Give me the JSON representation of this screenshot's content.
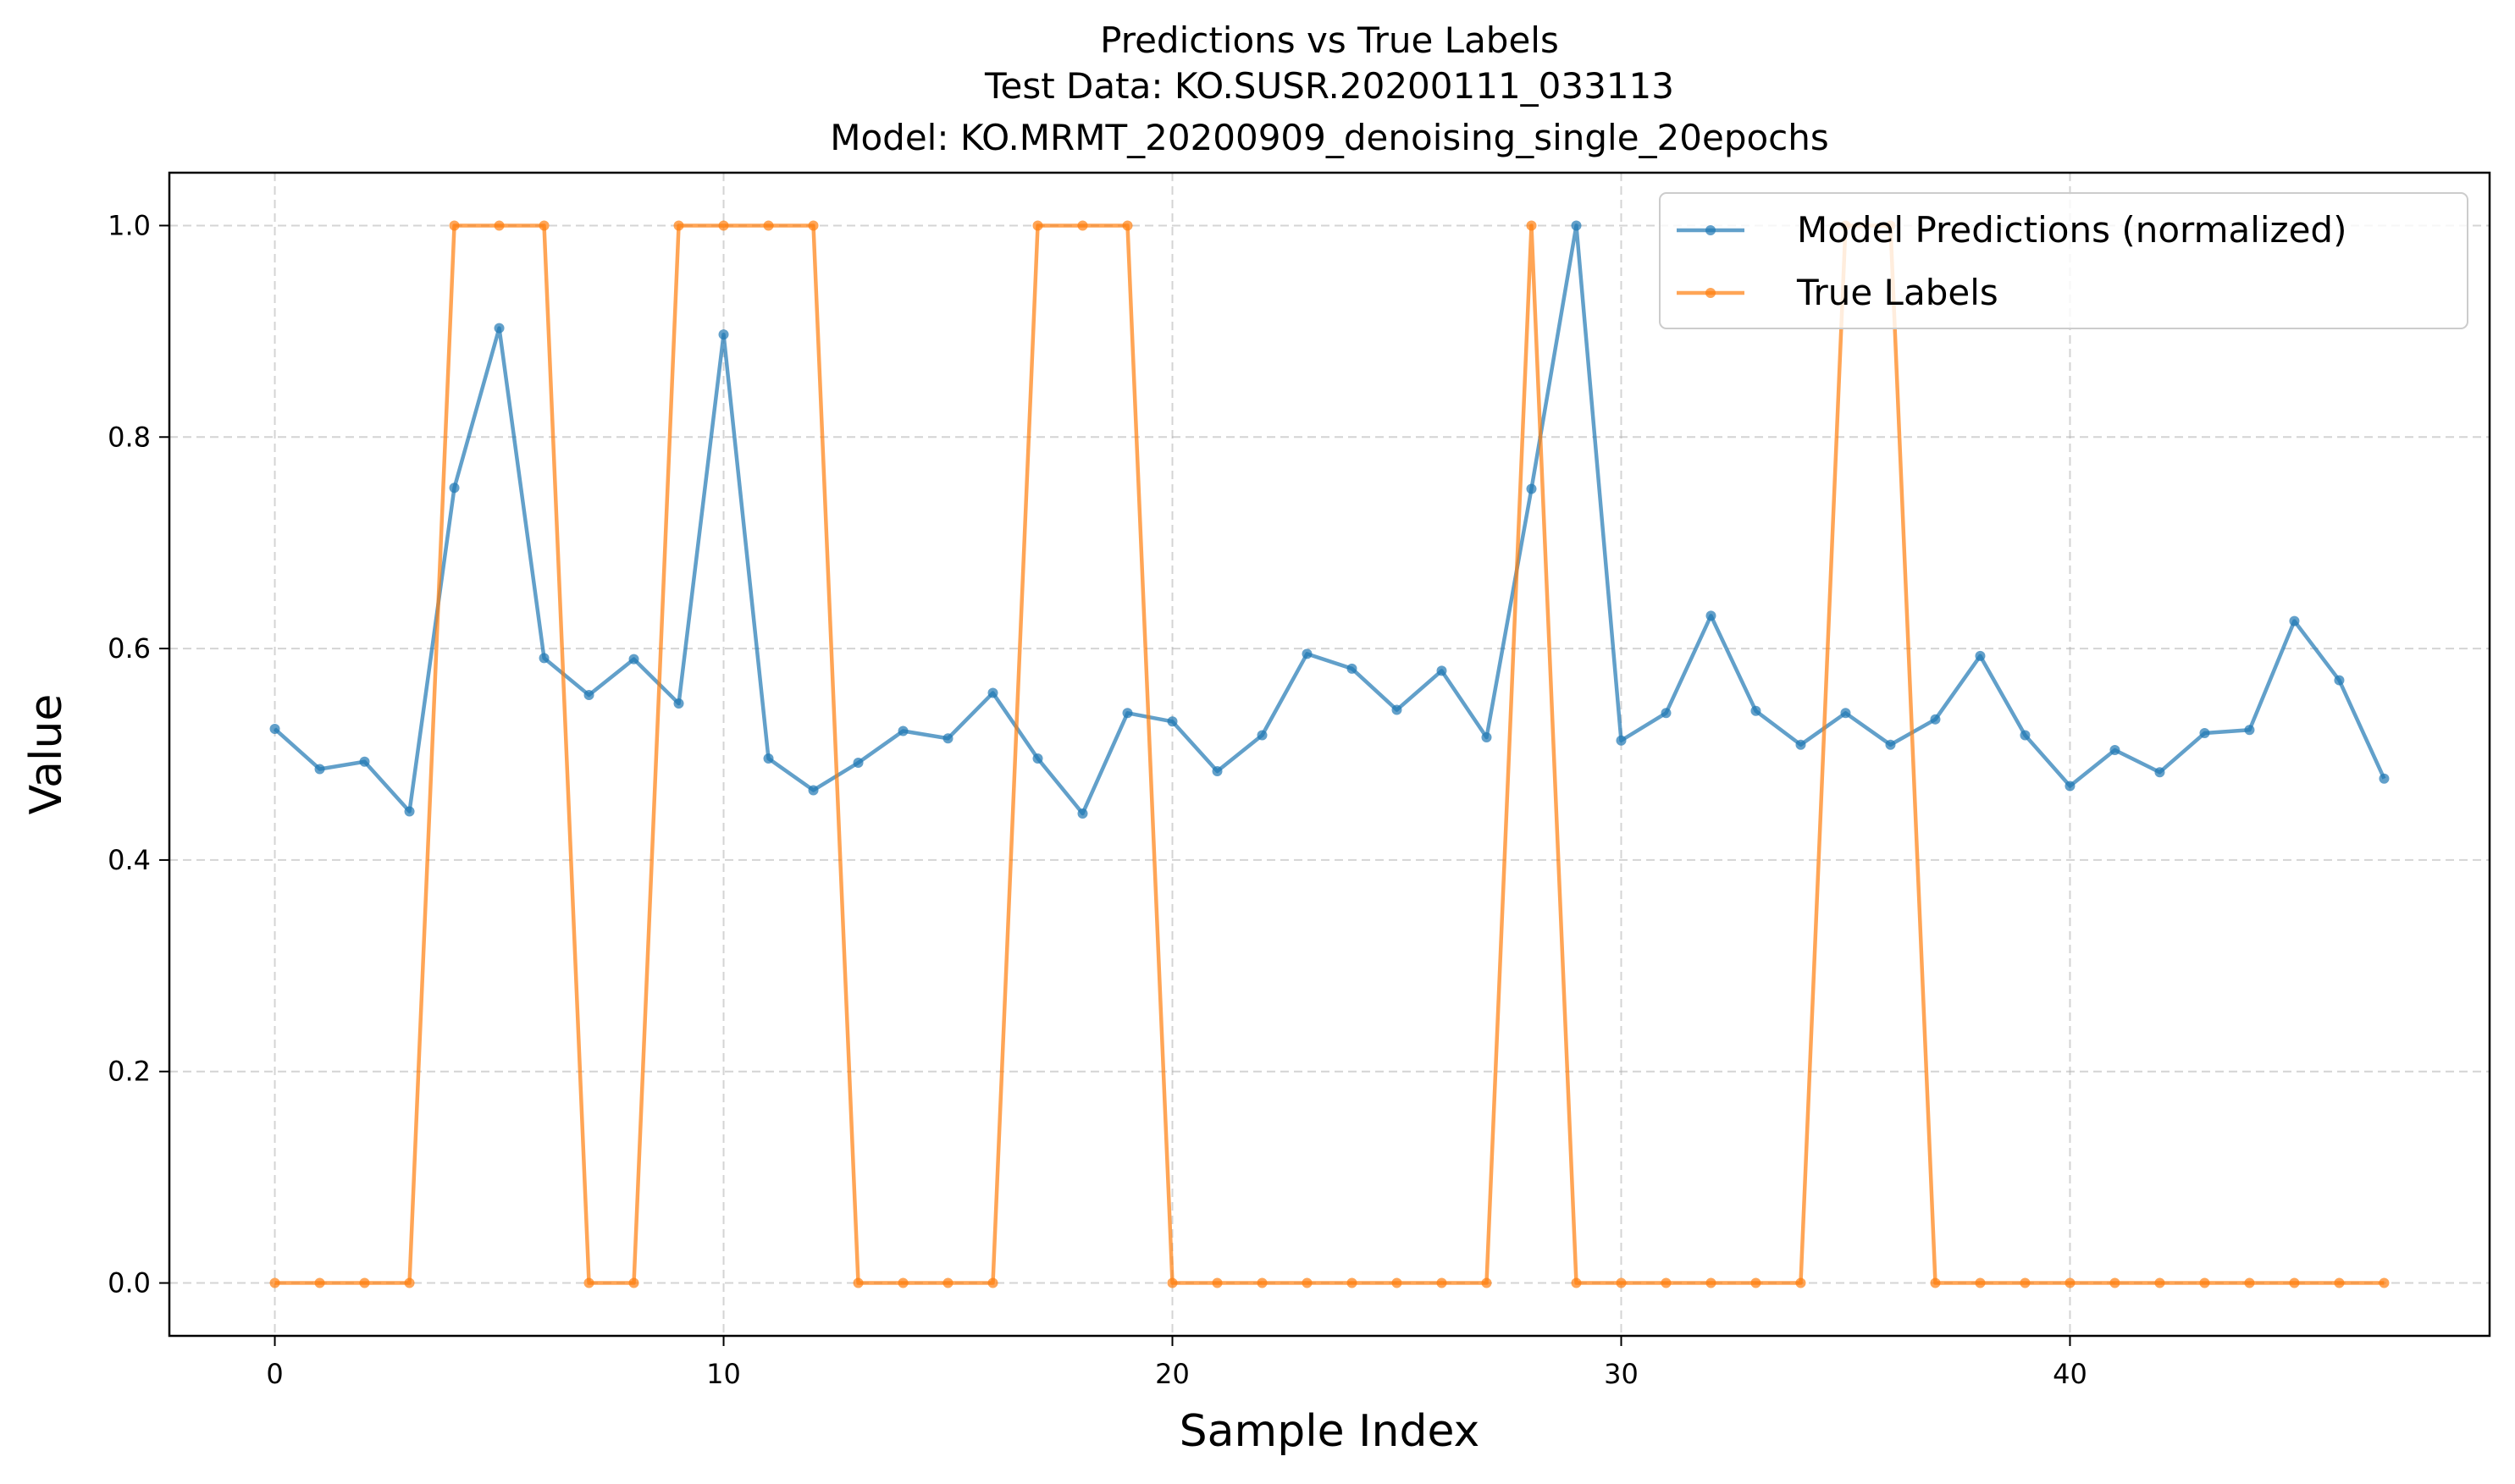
{
  "chart_data": {
    "type": "line",
    "title_lines": [
      "Predictions vs True Labels",
      "Test Data: KO.SUSR.20200111_033113",
      "Model: KO.MRMT_20200909_denoising_single_20epochs"
    ],
    "xlabel": "Sample Index",
    "ylabel": "Value",
    "xlim": [
      -2.35,
      49.35
    ],
    "ylim": [
      -0.05,
      1.05
    ],
    "xticks": [
      0,
      10,
      20,
      30,
      40
    ],
    "xtick_labels": [
      "0",
      "10",
      "20",
      "30",
      "40"
    ],
    "yticks": [
      0.0,
      0.2,
      0.4,
      0.6,
      0.8,
      1.0
    ],
    "ytick_labels": [
      "0.0",
      "0.2",
      "0.4",
      "0.6",
      "0.8",
      "1.0"
    ],
    "grid": true,
    "legend_position": "top-right",
    "x": [
      0,
      1,
      2,
      3,
      4,
      5,
      6,
      7,
      8,
      9,
      10,
      11,
      12,
      13,
      14,
      15,
      16,
      17,
      18,
      19,
      20,
      21,
      22,
      23,
      24,
      25,
      26,
      27,
      28,
      29,
      30,
      31,
      32,
      33,
      34,
      35,
      36,
      37,
      38,
      39,
      40,
      41,
      42,
      43,
      44,
      45,
      46,
      47
    ],
    "series": [
      {
        "name": "Model Predictions (normalized)",
        "color": "#1f77b4",
        "values": [
          0.524,
          0.486,
          0.493,
          0.446,
          0.752,
          0.903,
          0.591,
          0.556,
          0.59,
          0.548,
          0.897,
          0.496,
          0.466,
          0.492,
          0.522,
          0.515,
          0.558,
          0.496,
          0.444,
          0.539,
          0.531,
          0.484,
          0.518,
          0.595,
          0.581,
          0.542,
          0.579,
          0.516,
          0.751,
          1.0,
          0.513,
          0.539,
          0.631,
          0.541,
          0.509,
          0.539,
          0.509,
          0.533,
          0.593,
          0.518,
          0.47,
          0.504,
          0.483,
          0.52,
          0.523,
          0.626,
          0.57,
          0.477
        ]
      },
      {
        "name": "True Labels",
        "color": "#ff7f0e",
        "values": [
          0,
          0,
          0,
          0,
          1,
          1,
          1,
          0,
          0,
          1,
          1,
          1,
          1,
          0,
          0,
          0,
          0,
          1,
          1,
          1,
          0,
          0,
          0,
          0,
          0,
          0,
          0,
          0,
          1,
          0,
          0,
          0,
          0,
          0,
          0,
          1,
          1,
          0,
          0,
          0,
          0,
          0,
          0,
          0,
          0,
          0,
          0,
          0
        ]
      }
    ]
  }
}
